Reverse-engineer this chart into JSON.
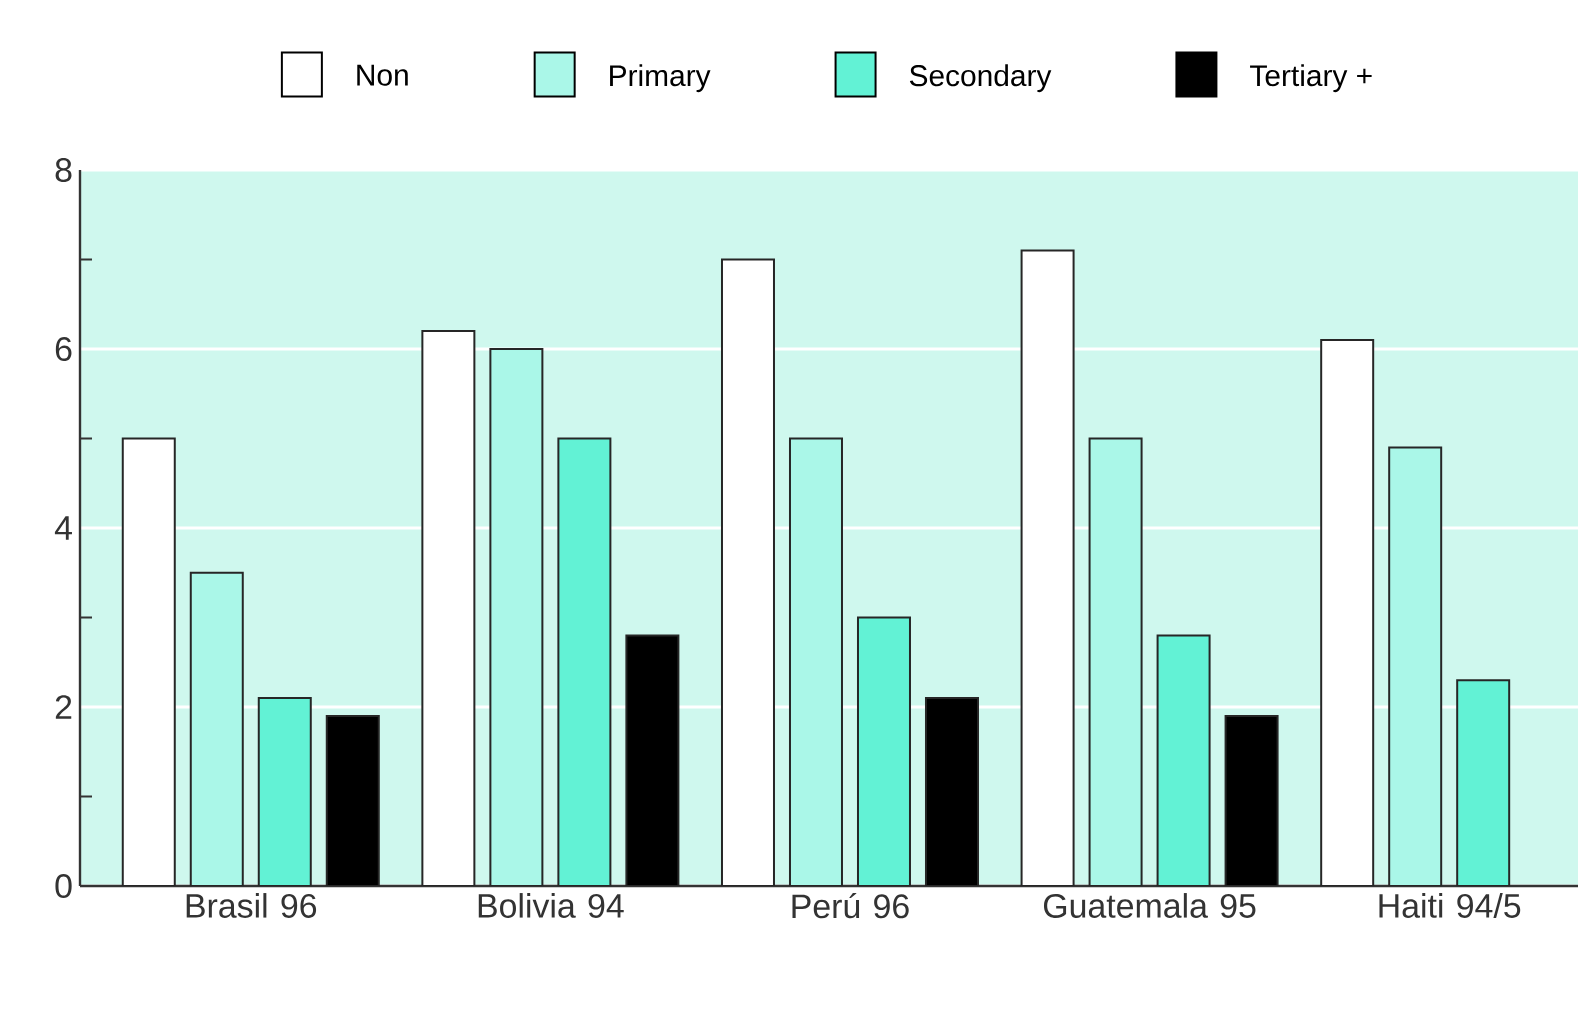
{
  "chart_data": {
    "type": "bar",
    "categories": [
      "Brasil 96",
      "Bolivia 94",
      "Perú 96",
      "Guatemala 95",
      "Haiti 94/5"
    ],
    "series": [
      {
        "name": "Non",
        "color": "#ffffff",
        "values": [
          5.0,
          6.2,
          7.0,
          7.1,
          6.1
        ]
      },
      {
        "name": "Primary",
        "color": "#aaf7e8",
        "values": [
          3.5,
          6.0,
          5.0,
          5.0,
          4.9
        ]
      },
      {
        "name": "Secondary",
        "color": "#62f2d5",
        "values": [
          2.1,
          5.0,
          3.0,
          2.8,
          2.3
        ]
      },
      {
        "name": "Tertiary +",
        "color": "#000000",
        "values": [
          1.9,
          2.8,
          2.1,
          1.9,
          null
        ]
      }
    ],
    "ylim": [
      0,
      8
    ],
    "yticks": [
      0,
      {
        "value": 1,
        "label": null
      },
      2,
      {
        "value": 3,
        "label": null
      },
      4,
      {
        "value": 5,
        "label": null
      },
      6,
      {
        "value": 7,
        "label": null
      },
      8
    ],
    "grid": "y",
    "legend": "top"
  }
}
